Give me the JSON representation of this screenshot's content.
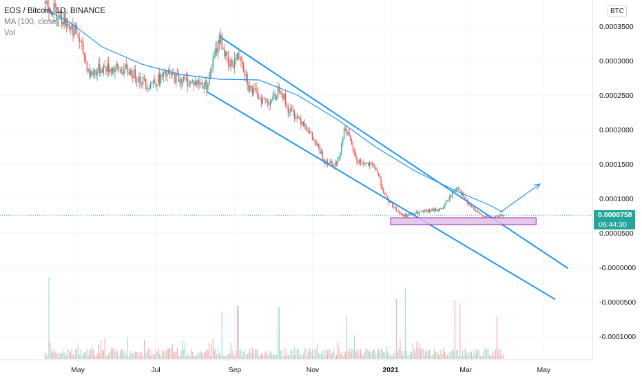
{
  "legend": {
    "symbol_line": "EOS / Bitcoin, 1D, BINANCE",
    "ma_line": "MA (100, close, 0)",
    "vol_line": "Vol"
  },
  "currency_badge": "BTC",
  "last_price": "0.0000758",
  "countdown": "06:44:30",
  "colors": {
    "up": "#26a69a",
    "down": "#ef5350",
    "drawing": "#2196f3",
    "zone_fill": "#e1bee7",
    "zone_border": "#9c27b0",
    "ma": "#2196f3"
  },
  "chart_data": {
    "type": "candlestick",
    "title": "EOS / Bitcoin, 1D, BINANCE",
    "indicators": [
      "MA (100, close, 0)",
      "Vol"
    ],
    "y_ticks": [
      "0.0003500",
      "0.0003000",
      "0.0002500",
      "0.0002000",
      "0.0001500",
      "0.0001000",
      "0.0000500",
      "-0.0000000",
      "-0.0000500",
      "-0.0001000"
    ],
    "x_ticks": [
      "May",
      "Jul",
      "Sep",
      "Nov",
      "2021",
      "Mar",
      "May"
    ],
    "last_price": 7.58e-05,
    "price_path": [
      [
        "2020-04-05",
        0.000385
      ],
      [
        "2020-04-20",
        0.00036
      ],
      [
        "2020-04-30",
        0.00034
      ],
      [
        "2020-05-10",
        0.00028
      ],
      [
        "2020-05-20",
        0.00029
      ],
      [
        "2020-06-10",
        0.000285
      ],
      [
        "2020-06-25",
        0.000265
      ],
      [
        "2020-07-10",
        0.00028
      ],
      [
        "2020-07-25",
        0.00027
      ],
      [
        "2020-08-10",
        0.000265
      ],
      [
        "2020-08-20",
        0.000335
      ],
      [
        "2020-08-27",
        0.00029
      ],
      [
        "2020-09-05",
        0.00031
      ],
      [
        "2020-09-12",
        0.00026
      ],
      [
        "2020-09-25",
        0.00024
      ],
      [
        "2020-10-02",
        0.000245
      ],
      [
        "2020-10-06",
        0.000265
      ],
      [
        "2020-10-12",
        0.00023
      ],
      [
        "2020-10-25",
        0.00021
      ],
      [
        "2020-11-10",
        0.000155
      ],
      [
        "2020-11-20",
        0.00015
      ],
      [
        "2020-11-26",
        0.000205
      ],
      [
        "2020-12-05",
        0.000155
      ],
      [
        "2020-12-20",
        0.000145
      ],
      [
        "2020-12-28",
        0.0001
      ],
      [
        "2021-01-10",
        7.5e-05
      ],
      [
        "2021-01-25",
        8e-05
      ],
      [
        "2021-02-10",
        8.5e-05
      ],
      [
        "2021-02-22",
        0.000118
      ],
      [
        "2021-03-01",
        9.5e-05
      ],
      [
        "2021-03-10",
        7.8e-05
      ],
      [
        "2021-03-20",
        7.2e-05
      ],
      [
        "2021-03-30",
        7.58e-05
      ]
    ],
    "ma100_path": [
      [
        "2020-04-05",
        0.000375
      ],
      [
        "2020-04-25",
        0.000355
      ],
      [
        "2020-05-20",
        0.00032
      ],
      [
        "2020-06-20",
        0.000295
      ],
      [
        "2020-07-20",
        0.00028
      ],
      [
        "2020-08-20",
        0.000273
      ],
      [
        "2020-09-20",
        0.000272
      ],
      [
        "2020-10-20",
        0.00025
      ],
      [
        "2020-11-20",
        0.000215
      ],
      [
        "2020-12-20",
        0.000175
      ],
      [
        "2021-01-20",
        0.00014
      ],
      [
        "2021-02-20",
        0.000112
      ],
      [
        "2021-03-20",
        9e-05
      ],
      [
        "2021-03-30",
        8e-05
      ]
    ],
    "trend_channel": {
      "upper": [
        [
          "2020-08-20",
          0.000335
        ],
        [
          "2021-05-20",
          -1.5e-06
        ]
      ],
      "lower": [
        [
          "2020-08-10",
          0.000255
        ],
        [
          "2021-05-10",
          -4.65e-05
        ]
      ]
    },
    "arrow": {
      "from": [
        "2021-03-28",
        8e-05
      ],
      "to": [
        "2021-04-28",
        0.000121
      ]
    },
    "support_zone": {
      "x": [
        "2021-01-01",
        "2021-04-25"
      ],
      "y": [
        6.2e-05,
        7.2e-05
      ]
    },
    "volume": {
      "spikes": [
        [
          "2020-04-08",
          0.95
        ],
        [
          "2020-08-22",
          0.55
        ],
        [
          "2020-09-03",
          0.62
        ],
        [
          "2020-10-05",
          0.6
        ],
        [
          "2020-11-27",
          0.5
        ],
        [
          "2021-01-05",
          0.7
        ],
        [
          "2021-01-12",
          0.83
        ],
        [
          "2021-02-20",
          0.68
        ],
        [
          "2021-02-24",
          0.63
        ],
        [
          "2021-03-25",
          0.5
        ]
      ]
    }
  }
}
